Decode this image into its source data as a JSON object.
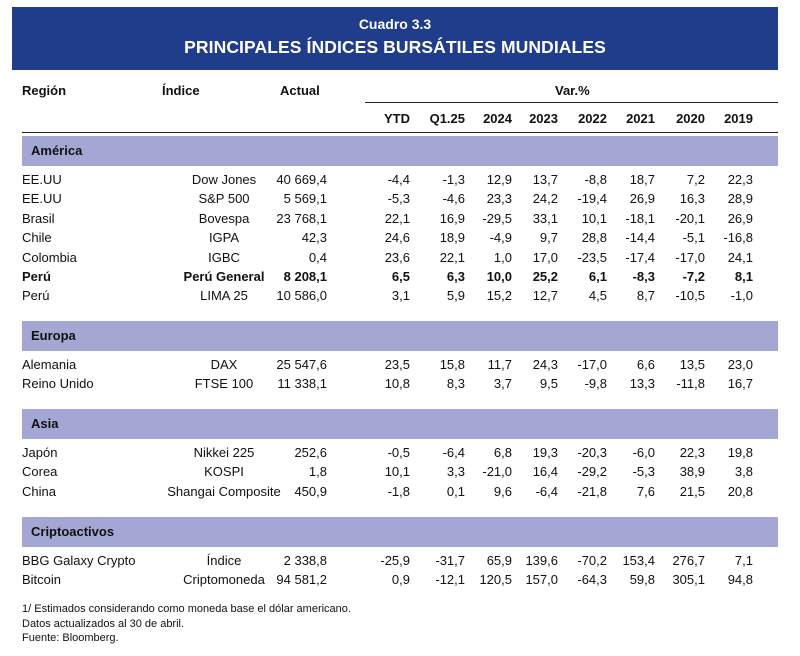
{
  "header": {
    "cuadro": "Cuadro 3.3",
    "title": "PRINCIPALES ÍNDICES BURSÁTILES MUNDIALES"
  },
  "columns": {
    "region": "Región",
    "index": "Índice",
    "actual": "Actual",
    "var": "Var.%",
    "periods": [
      "YTD",
      "Q1.25",
      "2024",
      "2023",
      "2022",
      "2021",
      "2020",
      "2019"
    ]
  },
  "sections": [
    {
      "name": "América",
      "rows": [
        {
          "region": "EE.UU",
          "index": "Dow Jones",
          "actual": "40 669,4",
          "values": [
            "-4,4",
            "-1,3",
            "12,9",
            "13,7",
            "-8,8",
            "18,7",
            "7,2",
            "22,3"
          ],
          "bold": false
        },
        {
          "region": "EE.UU",
          "index": "S&P 500",
          "actual": "5 569,1",
          "values": [
            "-5,3",
            "-4,6",
            "23,3",
            "24,2",
            "-19,4",
            "26,9",
            "16,3",
            "28,9"
          ],
          "bold": false
        },
        {
          "region": "Brasil",
          "index": "Bovespa",
          "actual": "23 768,1",
          "values": [
            "22,1",
            "16,9",
            "-29,5",
            "33,1",
            "10,1",
            "-18,1",
            "-20,1",
            "26,9"
          ],
          "bold": false
        },
        {
          "region": "Chile",
          "index": "IGPA",
          "actual": "42,3",
          "values": [
            "24,6",
            "18,9",
            "-4,9",
            "9,7",
            "28,8",
            "-14,4",
            "-5,1",
            "-16,8"
          ],
          "bold": false
        },
        {
          "region": "Colombia",
          "index": "IGBC",
          "actual": "0,4",
          "values": [
            "23,6",
            "22,1",
            "1,0",
            "17,0",
            "-23,5",
            "-17,4",
            "-17,0",
            "24,1"
          ],
          "bold": false
        },
        {
          "region": "Perú",
          "index": "Perú General",
          "actual": "8 208,1",
          "values": [
            "6,5",
            "6,3",
            "10,0",
            "25,2",
            "6,1",
            "-8,3",
            "-7,2",
            "8,1"
          ],
          "bold": true
        },
        {
          "region": "Perú",
          "index": "LIMA 25",
          "actual": "10 586,0",
          "values": [
            "3,1",
            "5,9",
            "15,2",
            "12,7",
            "4,5",
            "8,7",
            "-10,5",
            "-1,0"
          ],
          "bold": false
        }
      ]
    },
    {
      "name": "Europa",
      "rows": [
        {
          "region": "Alemania",
          "index": "DAX",
          "actual": "25 547,6",
          "values": [
            "23,5",
            "15,8",
            "11,7",
            "24,3",
            "-17,0",
            "6,6",
            "13,5",
            "23,0"
          ],
          "bold": false
        },
        {
          "region": "Reino Unido",
          "index": "FTSE 100",
          "actual": "11 338,1",
          "values": [
            "10,8",
            "8,3",
            "3,7",
            "9,5",
            "-9,8",
            "13,3",
            "-11,8",
            "16,7"
          ],
          "bold": false
        }
      ]
    },
    {
      "name": "Asia",
      "rows": [
        {
          "region": "Japón",
          "index": "Nikkei 225",
          "actual": "252,6",
          "values": [
            "-0,5",
            "-6,4",
            "6,8",
            "19,3",
            "-20,3",
            "-6,0",
            "22,3",
            "19,8"
          ],
          "bold": false
        },
        {
          "region": "Corea",
          "index": "KOSPI",
          "actual": "1,8",
          "values": [
            "10,1",
            "3,3",
            "-21,0",
            "16,4",
            "-29,2",
            "-5,3",
            "38,9",
            "3,8"
          ],
          "bold": false
        },
        {
          "region": "China",
          "index": "Shangai Composite",
          "actual": "450,9",
          "values": [
            "-1,8",
            "0,1",
            "9,6",
            "-6,4",
            "-21,8",
            "7,6",
            "21,5",
            "20,8"
          ],
          "bold": false
        }
      ]
    },
    {
      "name": "Criptoactivos",
      "rows": [
        {
          "region": "BBG Galaxy Crypto",
          "index": "Índice",
          "actual": "2 338,8",
          "values": [
            "-25,9",
            "-31,7",
            "65,9",
            "139,6",
            "-70,2",
            "153,4",
            "276,7",
            "7,1"
          ],
          "bold": false
        },
        {
          "region": "Bitcoin",
          "index": "Criptomoneda",
          "actual": "94 581,2",
          "values": [
            "0,9",
            "-12,1",
            "120,5",
            "157,0",
            "-64,3",
            "59,8",
            "305,1",
            "94,8"
          ],
          "bold": false
        }
      ]
    }
  ],
  "footnotes": [
    "1/ Estimados considerando como moneda base el dólar americano.",
    "Datos actualizados al 30 de abril.",
    "Fuente: Bloomberg."
  ],
  "colors": {
    "banner": "#1f3d8b",
    "section_band": "#a4a7d4"
  }
}
